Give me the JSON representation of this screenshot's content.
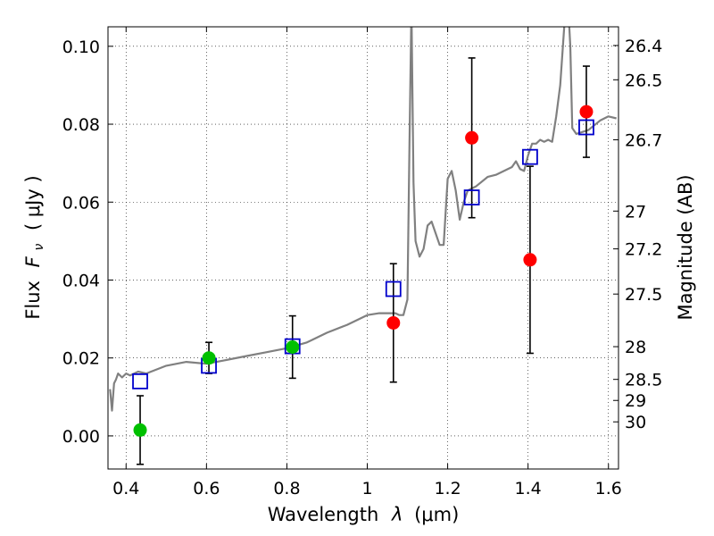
{
  "chart_data": {
    "type": "scatter",
    "title": "",
    "xlabel_text": "Wavelength",
    "xlabel_symbol": "λ",
    "xlabel_unit": "(μm)",
    "ylabel_text": "Flux",
    "ylabel_symbol_main": "F",
    "ylabel_symbol_sub": "ν",
    "ylabel_unit": "( μJy )",
    "y2label": "Magnitude (AB)",
    "xlim": [
      0.355,
      1.625
    ],
    "ylim": [
      -0.0085,
      0.105
    ],
    "grid": true,
    "xticks": [
      0.4,
      0.6,
      0.8,
      1.0,
      1.2,
      1.4,
      1.6
    ],
    "xtick_labels": [
      "0.4",
      "0.6",
      "0.8",
      "1",
      "1.2",
      "1.4",
      "1.6"
    ],
    "yticks": [
      0.0,
      0.02,
      0.04,
      0.06,
      0.08,
      0.1
    ],
    "ytick_labels": [
      "0.00",
      "0.02",
      "0.04",
      "0.06",
      "0.08",
      "0.10"
    ],
    "y2ticks": [
      {
        "label": "26.4",
        "flux": 0.1002
      },
      {
        "label": "26.5",
        "flux": 0.0914
      },
      {
        "label": "26.7",
        "flux": 0.076
      },
      {
        "label": "27",
        "flux": 0.0577
      },
      {
        "label": "27.2",
        "flux": 0.048
      },
      {
        "label": "27.5",
        "flux": 0.0364
      },
      {
        "label": "28",
        "flux": 0.0229
      },
      {
        "label": "28.5",
        "flux": 0.0145
      },
      {
        "label": "29",
        "flux": 0.0091
      },
      {
        "label": "30",
        "flux": 0.0036
      }
    ],
    "colors": {
      "observed_optical": "#00c000",
      "observed_nir": "#ff0000",
      "model_box": "#0000cc",
      "model_spectrum": "#808080",
      "errorbar": "#000000"
    },
    "series": [
      {
        "marker": "circle",
        "color": "#00c000",
        "points": [
          {
            "x": 0.435,
            "y": 0.0015,
            "yerr": 0.0088
          },
          {
            "x": 0.606,
            "y": 0.02,
            "yerr": 0.004
          },
          {
            "x": 0.814,
            "y": 0.0228,
            "yerr": 0.008
          }
        ]
      },
      {
        "marker": "circle",
        "color": "#ff0000",
        "points": [
          {
            "x": 1.065,
            "y": 0.029,
            "yerr": 0.0152
          },
          {
            "x": 1.26,
            "y": 0.0765,
            "yerr": 0.0205
          },
          {
            "x": 1.405,
            "y": 0.0452,
            "yerr": 0.024
          },
          {
            "x": 1.545,
            "y": 0.0832,
            "yerr": 0.0117
          }
        ]
      },
      {
        "marker": "open-square",
        "color": "#0000cc",
        "points": [
          {
            "x": 0.435,
            "y": 0.014
          },
          {
            "x": 0.606,
            "y": 0.018
          },
          {
            "x": 0.814,
            "y": 0.023
          },
          {
            "x": 1.065,
            "y": 0.0377
          },
          {
            "x": 1.26,
            "y": 0.0612
          },
          {
            "x": 1.405,
            "y": 0.0716
          },
          {
            "x": 1.545,
            "y": 0.0792
          }
        ]
      },
      {
        "marker": "line",
        "color": "#808080",
        "x": [
          0.36,
          0.365,
          0.37,
          0.375,
          0.38,
          0.39,
          0.4,
          0.41,
          0.42,
          0.43,
          0.45,
          0.5,
          0.55,
          0.6,
          0.65,
          0.7,
          0.75,
          0.8,
          0.85,
          0.9,
          0.95,
          1.0,
          1.03,
          1.05,
          1.07,
          1.08,
          1.09,
          1.1,
          1.105,
          1.11,
          1.115,
          1.12,
          1.13,
          1.14,
          1.15,
          1.16,
          1.17,
          1.18,
          1.19,
          1.2,
          1.21,
          1.22,
          1.23,
          1.24,
          1.25,
          1.27,
          1.3,
          1.32,
          1.34,
          1.36,
          1.37,
          1.38,
          1.39,
          1.4,
          1.41,
          1.42,
          1.43,
          1.44,
          1.45,
          1.46,
          1.47,
          1.48,
          1.49,
          1.5,
          1.505,
          1.51,
          1.52,
          1.55,
          1.58,
          1.6,
          1.62
        ],
        "y": [
          0.012,
          0.0065,
          0.0135,
          0.0145,
          0.016,
          0.015,
          0.016,
          0.0155,
          0.016,
          0.0165,
          0.016,
          0.018,
          0.019,
          0.0185,
          0.0195,
          0.0205,
          0.0215,
          0.0225,
          0.024,
          0.0265,
          0.0285,
          0.031,
          0.0315,
          0.0315,
          0.0315,
          0.031,
          0.031,
          0.035,
          0.075,
          0.11,
          0.065,
          0.05,
          0.046,
          0.048,
          0.054,
          0.055,
          0.052,
          0.049,
          0.049,
          0.066,
          0.068,
          0.063,
          0.0555,
          0.06,
          0.063,
          0.064,
          0.0665,
          0.067,
          0.068,
          0.069,
          0.0705,
          0.0685,
          0.068,
          0.072,
          0.075,
          0.075,
          0.076,
          0.0755,
          0.076,
          0.0755,
          0.082,
          0.09,
          0.105,
          0.11,
          0.1,
          0.079,
          0.0775,
          0.0785,
          0.081,
          0.082,
          0.0815
        ]
      }
    ]
  }
}
